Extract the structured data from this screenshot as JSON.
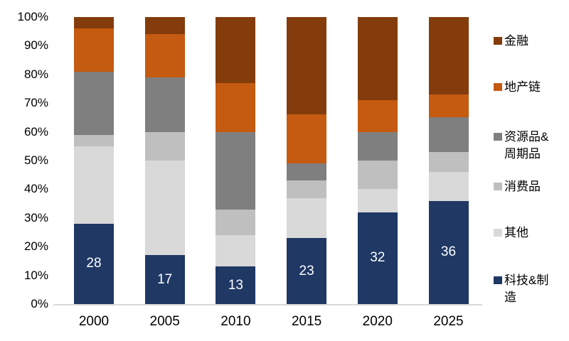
{
  "chart_data": {
    "type": "bar",
    "subtype": "stacked-100-percent",
    "title": "",
    "xlabel": "",
    "ylabel": "",
    "categories": [
      "2000",
      "2005",
      "2010",
      "2015",
      "2020",
      "2025"
    ],
    "series": [
      {
        "key": "tech-manufacturing",
        "name": "科技&制造",
        "color": "#1F3864",
        "values": [
          28,
          17,
          13,
          23,
          32,
          36
        ],
        "show_labels": true,
        "label_color": "#FFFFFF"
      },
      {
        "key": "others",
        "name": "其他",
        "color": "#D9D9D9",
        "values": [
          27,
          33,
          11,
          14,
          8,
          10
        ],
        "show_labels": false
      },
      {
        "key": "consumer-goods",
        "name": "消费品",
        "color": "#BFBFBF",
        "values": [
          4,
          10,
          9,
          6,
          10,
          7
        ],
        "show_labels": false
      },
      {
        "key": "resources-cyclical",
        "name": "资源品&周期品",
        "color": "#7F7F7F",
        "values": [
          22,
          19,
          27,
          6,
          10,
          12
        ],
        "show_labels": false
      },
      {
        "key": "property-chain",
        "name": "地产链",
        "color": "#C55A11",
        "values": [
          15,
          15,
          17,
          17,
          11,
          8
        ],
        "show_labels": false
      },
      {
        "key": "finance",
        "name": "金融",
        "color": "#843C0C",
        "values": [
          4,
          6,
          23,
          34,
          29,
          27
        ],
        "show_labels": false
      }
    ],
    "stack_order": "bottom-to-top",
    "bar_value_labels": [
      28,
      17,
      13,
      23,
      32,
      36
    ],
    "yticks": [
      "0%",
      "10%",
      "20%",
      "30%",
      "40%",
      "50%",
      "60%",
      "70%",
      "80%",
      "90%",
      "100%"
    ],
    "ylim": [
      0,
      100
    ],
    "grid": false,
    "legend_position": "right",
    "legend": [
      "金融",
      "地产链",
      "资源品&周期品",
      "消费品",
      "其他",
      "科技&制造"
    ],
    "axis_line_color": "#D9D9D9",
    "background_color": "#FFFFFF"
  }
}
